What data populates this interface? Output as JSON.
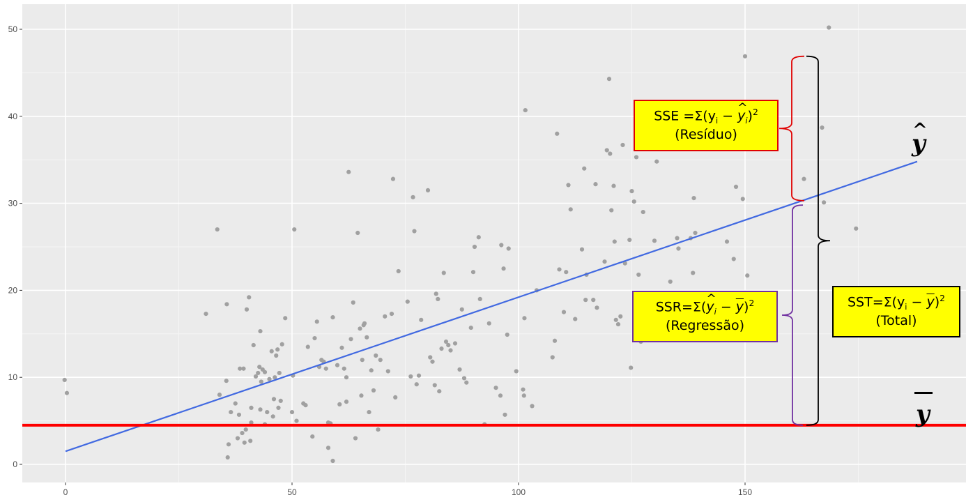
{
  "chart_data": {
    "type": "scatter",
    "xlim": [
      -9,
      188
    ],
    "ylim": [
      -2,
      52
    ],
    "x_ticks": [
      "0",
      "50",
      "100",
      "150"
    ],
    "y_ticks": [
      "0",
      "10",
      "20",
      "30",
      "40",
      "50"
    ],
    "grid": true,
    "background": "#ebebeb",
    "point_color": "#a0a0a0",
    "regression_line": {
      "color": "#4169e1",
      "x": [
        0,
        188
      ],
      "y": [
        1.5,
        34.8
      ]
    },
    "mean_line": {
      "color": "#ff0000",
      "y": 4.5
    },
    "points": [
      [
        -0.2,
        9.7
      ],
      [
        0.3,
        8.2
      ],
      [
        31,
        17.3
      ],
      [
        33.5,
        27
      ],
      [
        34,
        8
      ],
      [
        35.5,
        9.6
      ],
      [
        35.6,
        18.4
      ],
      [
        35.8,
        0.8
      ],
      [
        36,
        2.3
      ],
      [
        36.5,
        6
      ],
      [
        37.5,
        7
      ],
      [
        38,
        3
      ],
      [
        38.3,
        5.7
      ],
      [
        38.5,
        11
      ],
      [
        39,
        3.6
      ],
      [
        39.3,
        11
      ],
      [
        39.5,
        2.5
      ],
      [
        39.8,
        4
      ],
      [
        40,
        17.8
      ],
      [
        40.5,
        19.2
      ],
      [
        40.8,
        2.7
      ],
      [
        41,
        4.8
      ],
      [
        41,
        6.5
      ],
      [
        41.5,
        13.7
      ],
      [
        42,
        10.1
      ],
      [
        42.5,
        10.5
      ],
      [
        42.8,
        11.2
      ],
      [
        43,
        6.3
      ],
      [
        43,
        15.3
      ],
      [
        43.2,
        9.5
      ],
      [
        43.5,
        10.9
      ],
      [
        44,
        4.6
      ],
      [
        44,
        10.6
      ],
      [
        44.5,
        6
      ],
      [
        45,
        9.8
      ],
      [
        45.5,
        13
      ],
      [
        45.8,
        5.5
      ],
      [
        46,
        7.5
      ],
      [
        46.2,
        10
      ],
      [
        46.5,
        12.5
      ],
      [
        46.8,
        13.2
      ],
      [
        47,
        6.5
      ],
      [
        47.2,
        10.5
      ],
      [
        47.5,
        7.3
      ],
      [
        47.8,
        13.8
      ],
      [
        48.5,
        16.8
      ],
      [
        50,
        6
      ],
      [
        50.2,
        10.2
      ],
      [
        50.5,
        27
      ],
      [
        51,
        5
      ],
      [
        52.5,
        7
      ],
      [
        53,
        6.8
      ],
      [
        53.5,
        13.5
      ],
      [
        54.5,
        3.2
      ],
      [
        55,
        14.5
      ],
      [
        55.5,
        16.4
      ],
      [
        56,
        11.2
      ],
      [
        56.5,
        12
      ],
      [
        57,
        11.8
      ],
      [
        57.5,
        11
      ],
      [
        58,
        1.9
      ],
      [
        58,
        4.8
      ],
      [
        58.5,
        4.7
      ],
      [
        59,
        16.9
      ],
      [
        59,
        0.4
      ],
      [
        60,
        11.4
      ],
      [
        60.5,
        6.9
      ],
      [
        61,
        13.4
      ],
      [
        61.5,
        11
      ],
      [
        62,
        10
      ],
      [
        62,
        7.2
      ],
      [
        62.5,
        33.6
      ],
      [
        63,
        14.4
      ],
      [
        63.5,
        18.6
      ],
      [
        64,
        3
      ],
      [
        64.5,
        26.6
      ],
      [
        65,
        15.6
      ],
      [
        65.3,
        7.9
      ],
      [
        65.5,
        12
      ],
      [
        65.8,
        16
      ],
      [
        66,
        16.2
      ],
      [
        66.5,
        14.6
      ],
      [
        67,
        6
      ],
      [
        67.5,
        10.8
      ],
      [
        68,
        8.5
      ],
      [
        68.5,
        12.5
      ],
      [
        69,
        4
      ],
      [
        69.5,
        12
      ],
      [
        70.5,
        17
      ],
      [
        71.2,
        10.7
      ],
      [
        72,
        17.3
      ],
      [
        72.3,
        32.8
      ],
      [
        72.8,
        7.7
      ],
      [
        73.5,
        22.2
      ],
      [
        75.5,
        18.7
      ],
      [
        76.2,
        10.1
      ],
      [
        76.7,
        30.7
      ],
      [
        77,
        26.8
      ],
      [
        77.5,
        9.2
      ],
      [
        78,
        10.2
      ],
      [
        78.5,
        16.6
      ],
      [
        80,
        31.5
      ],
      [
        80.5,
        12.3
      ],
      [
        81,
        11.8
      ],
      [
        81.5,
        9.1
      ],
      [
        81.8,
        19.6
      ],
      [
        82.2,
        19
      ],
      [
        82.5,
        8.4
      ],
      [
        83,
        13.3
      ],
      [
        83.5,
        22
      ],
      [
        84,
        14.1
      ],
      [
        84.5,
        13.7
      ],
      [
        85,
        13.1
      ],
      [
        86,
        13.9
      ],
      [
        87,
        10.9
      ],
      [
        87.5,
        17.8
      ],
      [
        88,
        9.9
      ],
      [
        88.5,
        9.4
      ],
      [
        89.5,
        15.7
      ],
      [
        90,
        22.1
      ],
      [
        90.3,
        25
      ],
      [
        91.2,
        26.1
      ],
      [
        91.5,
        19
      ],
      [
        92.5,
        4.6
      ],
      [
        93.5,
        16.2
      ],
      [
        95,
        8.8
      ],
      [
        96,
        7.9
      ],
      [
        96.2,
        25.2
      ],
      [
        96.7,
        22.5
      ],
      [
        97,
        5.7
      ],
      [
        97.5,
        14.9
      ],
      [
        97.8,
        24.8
      ],
      [
        99.5,
        10.7
      ],
      [
        101,
        8.6
      ],
      [
        101.2,
        7.9
      ],
      [
        101.3,
        16.8
      ],
      [
        101.5,
        40.7
      ],
      [
        103,
        6.7
      ],
      [
        104,
        20
      ],
      [
        107.5,
        12.3
      ],
      [
        108,
        14.2
      ],
      [
        108.5,
        38
      ],
      [
        109,
        22.4
      ],
      [
        110,
        17.5
      ],
      [
        110.5,
        22.1
      ],
      [
        111,
        32.1
      ],
      [
        111.5,
        29.3
      ],
      [
        112.5,
        16.7
      ],
      [
        114,
        24.7
      ],
      [
        114.5,
        34
      ],
      [
        114.8,
        18.9
      ],
      [
        115,
        21.8
      ],
      [
        116.5,
        18.9
      ],
      [
        117,
        32.2
      ],
      [
        117.3,
        18
      ],
      [
        119,
        23.3
      ],
      [
        119.5,
        36.1
      ],
      [
        120,
        44.3
      ],
      [
        120.2,
        35.7
      ],
      [
        120.5,
        29.2
      ],
      [
        121,
        32
      ],
      [
        121.2,
        25.6
      ],
      [
        121.5,
        16.6
      ],
      [
        122,
        16.1
      ],
      [
        122.5,
        17
      ],
      [
        123,
        36.7
      ],
      [
        123.5,
        23.1
      ],
      [
        124.5,
        25.8
      ],
      [
        124.8,
        11.1
      ],
      [
        125,
        31.4
      ],
      [
        125.5,
        30.2
      ],
      [
        126,
        35.3
      ],
      [
        126.5,
        21.8
      ],
      [
        127,
        14.1
      ],
      [
        127.5,
        29
      ],
      [
        130,
        25.7
      ],
      [
        130.5,
        34.8
      ],
      [
        133.5,
        21
      ],
      [
        135,
        26
      ],
      [
        135.3,
        24.8
      ],
      [
        138,
        26
      ],
      [
        138.5,
        22
      ],
      [
        138.7,
        30.6
      ],
      [
        139,
        26.6
      ],
      [
        146,
        25.6
      ],
      [
        147.5,
        23.6
      ],
      [
        148,
        31.9
      ],
      [
        148.5,
        15.3
      ],
      [
        149.5,
        30.5
      ],
      [
        150,
        46.9
      ],
      [
        150.5,
        21.7
      ],
      [
        163,
        32.8
      ],
      [
        167,
        38.7
      ],
      [
        167.4,
        30.1
      ],
      [
        168.5,
        50.2
      ],
      [
        174.5,
        27.1
      ]
    ],
    "annotations": {
      "sse_line1": "SSE =Σ(y",
      "sse_line2": "(Resíduo)",
      "ssr_line1": "SSR=Σ(",
      "ssr_line2": "(Regressão)",
      "sst_line1": "SST=Σ(y",
      "sst_line2": "(Total)",
      "i_sub": "i",
      "y_letter": "y",
      "minus": " − ",
      "close_paren": ")",
      "square": "2",
      "yhat_label": "y",
      "ybar_label": "y"
    },
    "box_color": "#ffff00",
    "sse_border": "#e00000",
    "ssr_border": "#7030a0",
    "sst_border": "#000000"
  }
}
